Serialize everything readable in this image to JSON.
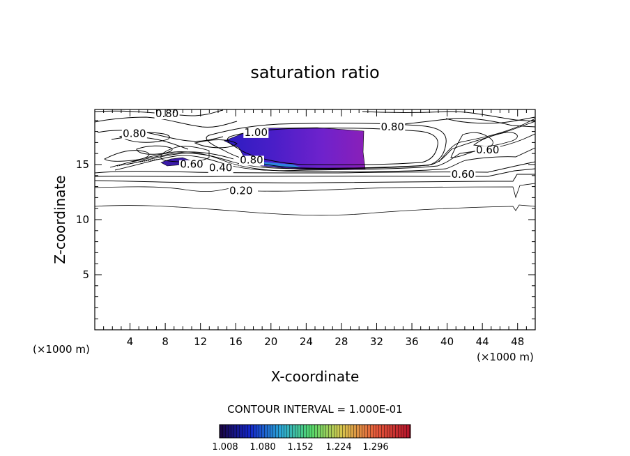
{
  "chart_data": {
    "type": "contour",
    "title": "saturation ratio",
    "xlabel": "X-coordinate",
    "ylabel": "Z-coordinate",
    "x_unit": "(×1000 m)",
    "z_unit": "(×1000 m)",
    "xlim": [
      0,
      50
    ],
    "ylim": [
      0,
      20
    ],
    "x_ticks": [
      4,
      8,
      12,
      16,
      20,
      24,
      28,
      32,
      36,
      40,
      44,
      48
    ],
    "y_ticks": [
      5,
      10,
      15
    ],
    "contour_interval_text": "CONTOUR INTERVAL = 1.000E-01",
    "contour_labels": [
      {
        "text": "0.80",
        "x": 8.2,
        "z": 19.3
      },
      {
        "text": "0.80",
        "x": 4.5,
        "z": 17.5
      },
      {
        "text": "1.00",
        "x": 18.3,
        "z": 17.6
      },
      {
        "text": "0.80",
        "x": 33.8,
        "z": 18.1
      },
      {
        "text": "0.60",
        "x": 11.0,
        "z": 14.7
      },
      {
        "text": "0.40",
        "x": 14.3,
        "z": 14.4
      },
      {
        "text": "0.80",
        "x": 17.8,
        "z": 15.1
      },
      {
        "text": "0.60",
        "x": 44.6,
        "z": 16.0
      },
      {
        "text": "0.60",
        "x": 41.8,
        "z": 13.8
      },
      {
        "text": "0.20",
        "x": 16.6,
        "z": 12.3
      }
    ],
    "shaded_range": {
      "label_values": [
        "1.008",
        "1.080",
        "1.152",
        "1.224",
        "1.296"
      ],
      "colors": [
        "#2a0a55",
        "#1a2fd8",
        "#27a6d6",
        "#56d76a",
        "#e0bf4a",
        "#e65a3a",
        "#b7132c"
      ]
    },
    "supersat_regions": [
      {
        "x": [
          16,
          30.5
        ],
        "z": [
          14.6,
          18.2
        ],
        "fill": "#6d1fd0"
      },
      {
        "x": [
          7.3,
          10.8
        ],
        "z": [
          15.6,
          16.4
        ],
        "fill": "#36179a"
      }
    ]
  }
}
